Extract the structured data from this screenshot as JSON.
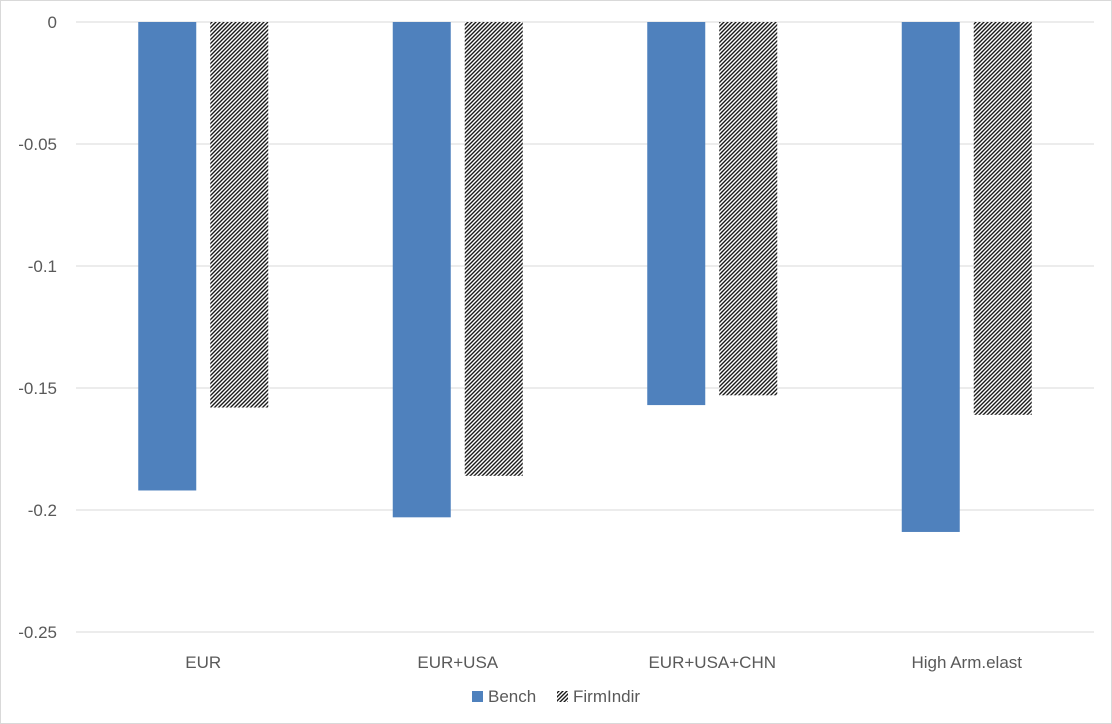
{
  "chart_data": {
    "type": "bar",
    "categories": [
      "EUR",
      "EUR+USA",
      "EUR+USA+CHN",
      "High Arm.elast"
    ],
    "series": [
      {
        "name": "Bench",
        "values": [
          -0.192,
          -0.203,
          -0.157,
          -0.209
        ],
        "color": "#4f81bd",
        "pattern": "solid"
      },
      {
        "name": "FirmIndir",
        "values": [
          -0.158,
          -0.186,
          -0.153,
          -0.161
        ],
        "color": "#1a1a1a",
        "pattern": "diagonal-hatch"
      }
    ],
    "yticks": [
      "0",
      "-0.05",
      "-0.1",
      "-0.15",
      "-0.2",
      "-0.25"
    ],
    "ylim": [
      -0.25,
      0
    ],
    "grid": true,
    "legend": "bottom",
    "title": "",
    "xlabel": "",
    "ylabel": ""
  }
}
